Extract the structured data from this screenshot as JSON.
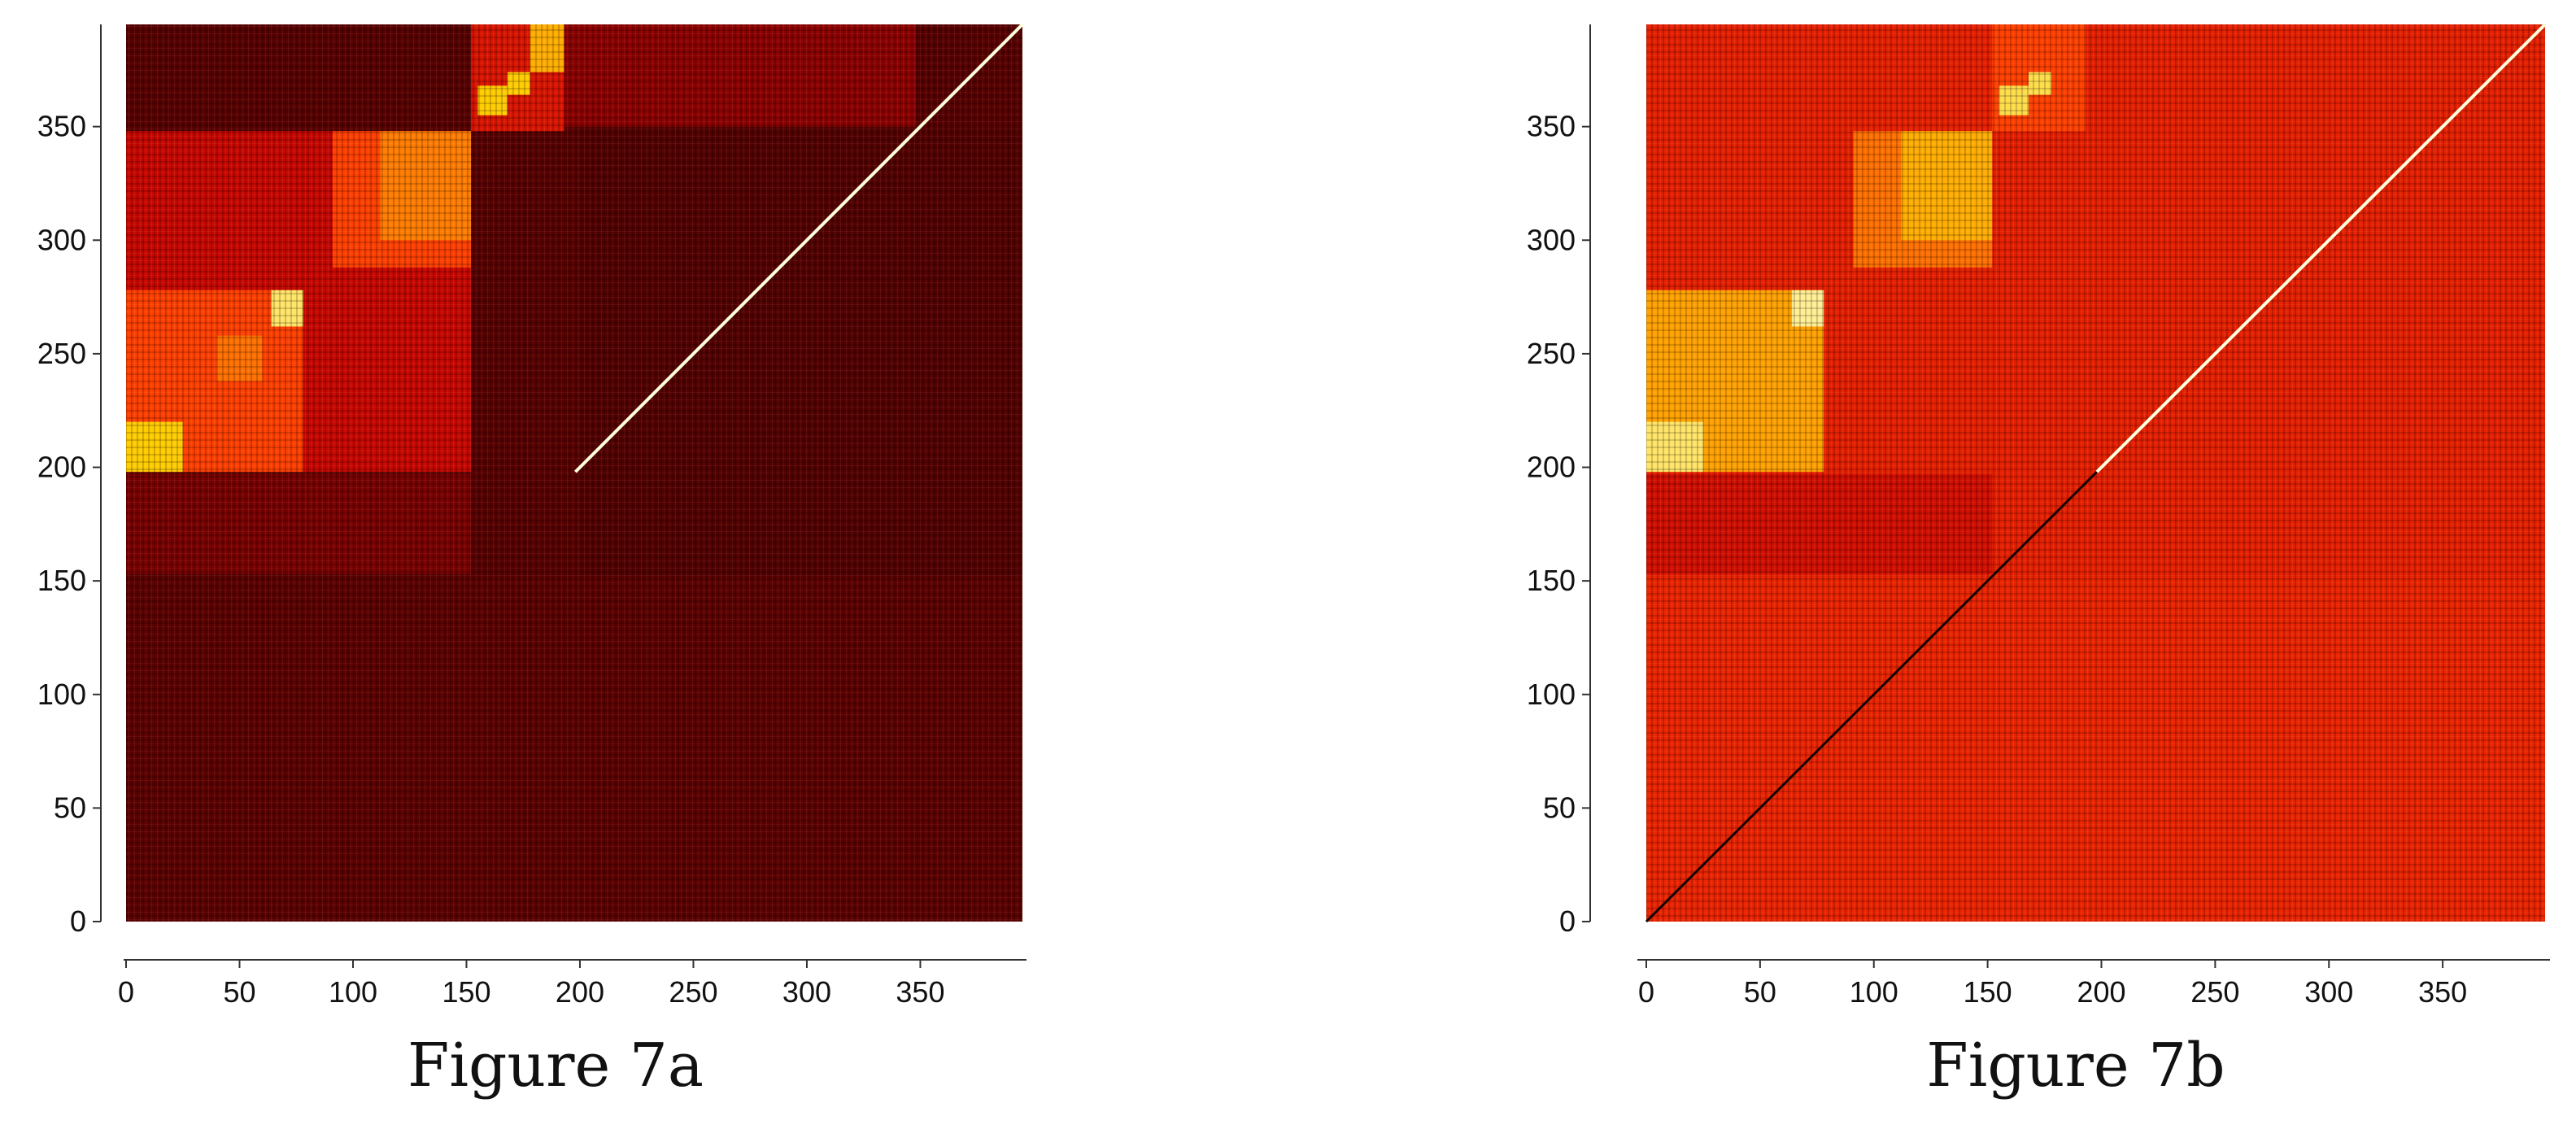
{
  "chart_data": [
    {
      "type": "heatmap",
      "caption": "Figure 7a",
      "xlim": [
        0,
        395
      ],
      "ylim": [
        0,
        395
      ],
      "x_ticks": [
        0,
        50,
        100,
        150,
        200,
        250,
        300,
        350
      ],
      "y_ticks": [
        0,
        50,
        100,
        150,
        200,
        250,
        300,
        350
      ],
      "colormap": "hot",
      "colors": {
        "dark": "#1a0000",
        "mid": "#c00000",
        "bright": "#ff3300",
        "light": "#ffcc00",
        "peak": "#ffffdd"
      },
      "base_intensity": 0.13,
      "blocks": [
        {
          "x": [
            0,
            78
          ],
          "y": [
            198,
            278
          ],
          "intensity": 0.62
        },
        {
          "x": [
            0,
            25
          ],
          "y": [
            198,
            220
          ],
          "intensity": 0.85
        },
        {
          "x": [
            64,
            78
          ],
          "y": [
            262,
            278
          ],
          "intensity": 0.92
        },
        {
          "x": [
            40,
            60
          ],
          "y": [
            238,
            258
          ],
          "intensity": 0.7
        },
        {
          "x": [
            91,
            152
          ],
          "y": [
            288,
            348
          ],
          "intensity": 0.62
        },
        {
          "x": [
            112,
            152
          ],
          "y": [
            300,
            348
          ],
          "intensity": 0.72
        },
        {
          "x": [
            0,
            152
          ],
          "y": [
            198,
            348
          ],
          "intensity": 0.38
        },
        {
          "x": [
            0,
            152
          ],
          "y": [
            153,
            197
          ],
          "intensity": 0.2
        },
        {
          "x": [
            152,
            193
          ],
          "y": [
            348,
            395
          ],
          "intensity": 0.45
        },
        {
          "x": [
            155,
            168
          ],
          "y": [
            355,
            368
          ],
          "intensity": 0.85
        },
        {
          "x": [
            168,
            178
          ],
          "y": [
            364,
            374
          ],
          "intensity": 0.85
        },
        {
          "x": [
            178,
            193
          ],
          "y": [
            374,
            395
          ],
          "intensity": 0.8
        },
        {
          "x": [
            193,
            348
          ],
          "y": [
            350,
            395
          ],
          "intensity": 0.24
        },
        {
          "x": [
            0,
            395
          ],
          "y": [
            0,
            152
          ],
          "intensity": 0.14
        },
        {
          "x": [
            200,
            395
          ],
          "y": [
            0,
            350
          ],
          "intensity": 0.12
        }
      ],
      "diagonal": {
        "from": 198,
        "to": 395,
        "intensity": 1.0
      }
    },
    {
      "type": "heatmap",
      "caption": "Figure 7b",
      "xlim": [
        0,
        395
      ],
      "ylim": [
        0,
        395
      ],
      "x_ticks": [
        0,
        50,
        100,
        150,
        200,
        250,
        300,
        350
      ],
      "y_ticks": [
        0,
        50,
        100,
        150,
        200,
        250,
        300,
        350
      ],
      "colormap": "hot",
      "colors": {
        "dark": "#1a0000",
        "mid": "#c00000",
        "bright": "#ff3300",
        "light": "#ffcc00",
        "peak": "#ffffdd"
      },
      "base_intensity": 0.5,
      "blocks": [
        {
          "x": [
            0,
            78
          ],
          "y": [
            198,
            278
          ],
          "intensity": 0.78
        },
        {
          "x": [
            0,
            25
          ],
          "y": [
            198,
            220
          ],
          "intensity": 0.92
        },
        {
          "x": [
            64,
            78
          ],
          "y": [
            262,
            278
          ],
          "intensity": 0.95
        },
        {
          "x": [
            91,
            152
          ],
          "y": [
            288,
            348
          ],
          "intensity": 0.7
        },
        {
          "x": [
            112,
            152
          ],
          "y": [
            300,
            348
          ],
          "intensity": 0.8
        },
        {
          "x": [
            152,
            193
          ],
          "y": [
            348,
            395
          ],
          "intensity": 0.62
        },
        {
          "x": [
            155,
            168
          ],
          "y": [
            355,
            368
          ],
          "intensity": 0.9
        },
        {
          "x": [
            168,
            178
          ],
          "y": [
            364,
            374
          ],
          "intensity": 0.9
        },
        {
          "x": [
            0,
            152
          ],
          "y": [
            153,
            197
          ],
          "intensity": 0.42
        },
        {
          "x": [
            0,
            395
          ],
          "y": [
            0,
            152
          ],
          "intensity": 0.52
        },
        {
          "x": [
            200,
            395
          ],
          "y": [
            0,
            350
          ],
          "intensity": 0.5
        }
      ],
      "diagonal": {
        "from": 198,
        "to": 395,
        "intensity": 1.0
      },
      "dark_diagonal": {
        "from": 0,
        "to": 395
      }
    }
  ]
}
